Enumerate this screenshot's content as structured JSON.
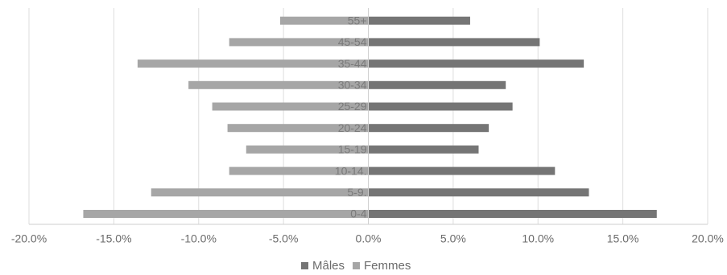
{
  "chart_data": {
    "type": "bar",
    "orientation": "horizontal",
    "title": "",
    "xlabel": "",
    "ylabel": "",
    "categories": [
      "0-4",
      "5-9.",
      "10-14.",
      "15-19",
      "20-24",
      "25-29",
      "30-34",
      "35-44",
      "45-54",
      "55+"
    ],
    "series": [
      {
        "name": "Mâles",
        "color": "#757575",
        "values": [
          17.0,
          13.0,
          11.0,
          6.5,
          7.1,
          8.5,
          8.1,
          12.7,
          10.1,
          6.0
        ]
      },
      {
        "name": "Femmes",
        "color": "#a6a6a6",
        "values": [
          -16.8,
          -12.8,
          -8.2,
          -7.2,
          -8.3,
          -9.2,
          -10.6,
          -13.6,
          -8.2,
          -5.2
        ]
      }
    ],
    "xlim": [
      -20,
      20
    ],
    "xticks": [
      -20,
      -15,
      -10,
      -5,
      0,
      5,
      10,
      15,
      20
    ],
    "xtick_labels": [
      "-20.0%",
      "-15.0%",
      "-10.0%",
      "-5.0%",
      "0.0%",
      "5.0%",
      "10.0%",
      "15.0%",
      "20.0%"
    ],
    "grid": true,
    "legend_position": "bottom"
  }
}
